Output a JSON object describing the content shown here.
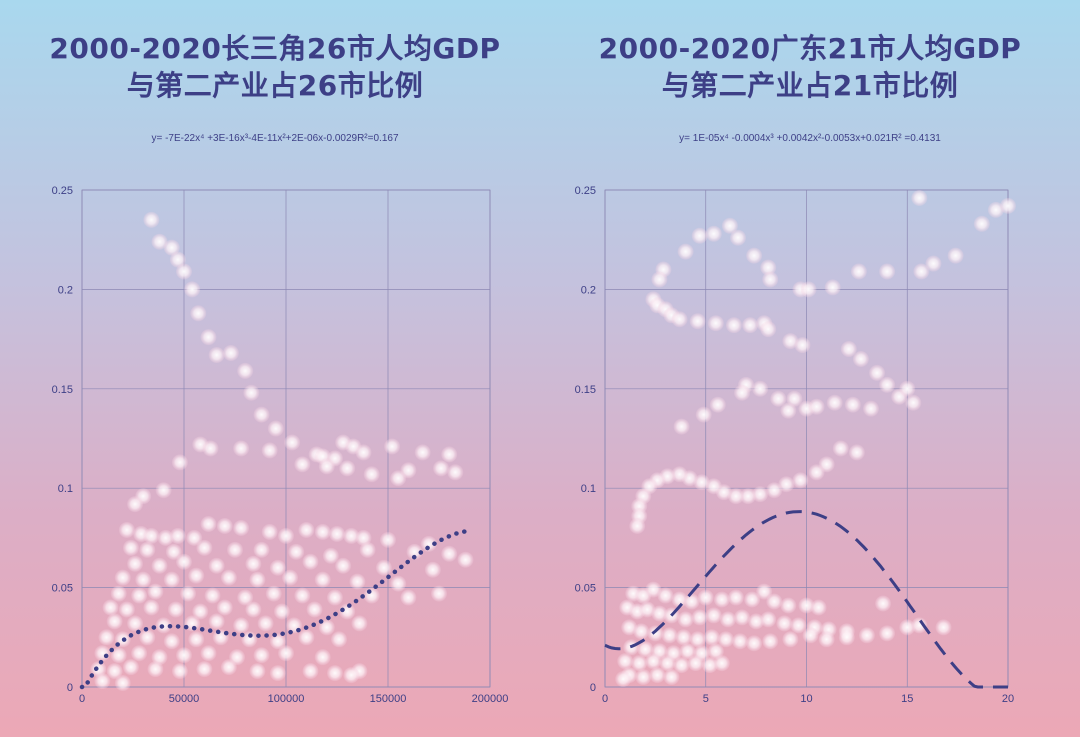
{
  "colors": {
    "title": "#3d3f86",
    "axis": "#7a78a8",
    "grid": "#8c88b4",
    "trend": "#3d3f86",
    "point": "#ffffff"
  },
  "chart_data": [
    {
      "type": "scatter",
      "title_line1": "2000-2020长三角26市人均GDP",
      "title_line2": "与第二产业占26市比例",
      "equation": "y= -7E-22x⁴ +3E-16x³-4E-11x²+2E-06x-0.0029R²=0.167",
      "xlim": [
        0,
        200000
      ],
      "ylim": [
        0,
        0.25
      ],
      "x_ticks": [
        "0",
        "50000",
        "100000",
        "150000",
        "200000"
      ],
      "y_ticks": [
        "0",
        "0.05",
        "0.1",
        "0.15",
        "0.2",
        "0.25"
      ],
      "grid": true,
      "trendline": {
        "style": "dotted",
        "coefficients": [
          -7e-22,
          3e-16,
          -4e-11,
          2e-06,
          -0.0029
        ],
        "x_range": [
          0,
          190000
        ]
      },
      "points": [
        [
          34000,
          0.235
        ],
        [
          38000,
          0.224
        ],
        [
          44000,
          0.221
        ],
        [
          47000,
          0.215
        ],
        [
          50000,
          0.209
        ],
        [
          54000,
          0.2
        ],
        [
          57000,
          0.188
        ],
        [
          62000,
          0.176
        ],
        [
          66000,
          0.167
        ],
        [
          73000,
          0.168
        ],
        [
          80000,
          0.159
        ],
        [
          83000,
          0.148
        ],
        [
          88000,
          0.137
        ],
        [
          95000,
          0.13
        ],
        [
          103000,
          0.123
        ],
        [
          108000,
          0.112
        ],
        [
          115000,
          0.117
        ],
        [
          118000,
          0.116
        ],
        [
          124000,
          0.115
        ],
        [
          128000,
          0.123
        ],
        [
          133000,
          0.121
        ],
        [
          138000,
          0.118
        ],
        [
          152000,
          0.121
        ],
        [
          167000,
          0.118
        ],
        [
          180000,
          0.117
        ],
        [
          120000,
          0.111
        ],
        [
          130000,
          0.11
        ],
        [
          142000,
          0.107
        ],
        [
          160000,
          0.109
        ],
        [
          176000,
          0.11
        ],
        [
          183000,
          0.108
        ],
        [
          155000,
          0.105
        ],
        [
          58000,
          0.122
        ],
        [
          63000,
          0.12
        ],
        [
          78000,
          0.12
        ],
        [
          92000,
          0.119
        ],
        [
          48000,
          0.113
        ],
        [
          40000,
          0.099
        ],
        [
          30000,
          0.096
        ],
        [
          26000,
          0.092
        ],
        [
          22000,
          0.079
        ],
        [
          29000,
          0.077
        ],
        [
          34000,
          0.076
        ],
        [
          41000,
          0.075
        ],
        [
          47000,
          0.076
        ],
        [
          55000,
          0.075
        ],
        [
          62000,
          0.082
        ],
        [
          70000,
          0.081
        ],
        [
          78000,
          0.08
        ],
        [
          92000,
          0.078
        ],
        [
          100000,
          0.076
        ],
        [
          110000,
          0.079
        ],
        [
          118000,
          0.078
        ],
        [
          125000,
          0.077
        ],
        [
          132000,
          0.076
        ],
        [
          138000,
          0.075
        ],
        [
          150000,
          0.074
        ],
        [
          170000,
          0.072
        ],
        [
          188000,
          0.064
        ],
        [
          180000,
          0.067
        ],
        [
          24000,
          0.07
        ],
        [
          32000,
          0.069
        ],
        [
          45000,
          0.068
        ],
        [
          60000,
          0.07
        ],
        [
          75000,
          0.069
        ],
        [
          88000,
          0.069
        ],
        [
          105000,
          0.068
        ],
        [
          122000,
          0.066
        ],
        [
          140000,
          0.069
        ],
        [
          163000,
          0.068
        ],
        [
          26000,
          0.062
        ],
        [
          38000,
          0.061
        ],
        [
          50000,
          0.063
        ],
        [
          66000,
          0.061
        ],
        [
          84000,
          0.062
        ],
        [
          96000,
          0.06
        ],
        [
          112000,
          0.063
        ],
        [
          128000,
          0.061
        ],
        [
          148000,
          0.06
        ],
        [
          172000,
          0.059
        ],
        [
          20000,
          0.055
        ],
        [
          30000,
          0.054
        ],
        [
          44000,
          0.054
        ],
        [
          56000,
          0.056
        ],
        [
          72000,
          0.055
        ],
        [
          86000,
          0.054
        ],
        [
          102000,
          0.055
        ],
        [
          118000,
          0.054
        ],
        [
          135000,
          0.053
        ],
        [
          155000,
          0.052
        ],
        [
          18000,
          0.047
        ],
        [
          28000,
          0.046
        ],
        [
          36000,
          0.048
        ],
        [
          52000,
          0.047
        ],
        [
          64000,
          0.046
        ],
        [
          80000,
          0.045
        ],
        [
          94000,
          0.047
        ],
        [
          108000,
          0.046
        ],
        [
          124000,
          0.045
        ],
        [
          142000,
          0.046
        ],
        [
          160000,
          0.045
        ],
        [
          175000,
          0.047
        ],
        [
          14000,
          0.04
        ],
        [
          22000,
          0.039
        ],
        [
          34000,
          0.04
        ],
        [
          46000,
          0.039
        ],
        [
          58000,
          0.038
        ],
        [
          70000,
          0.04
        ],
        [
          84000,
          0.039
        ],
        [
          98000,
          0.038
        ],
        [
          114000,
          0.039
        ],
        [
          130000,
          0.038
        ],
        [
          16000,
          0.033
        ],
        [
          26000,
          0.032
        ],
        [
          40000,
          0.031
        ],
        [
          54000,
          0.032
        ],
        [
          66000,
          0.033
        ],
        [
          78000,
          0.031
        ],
        [
          90000,
          0.032
        ],
        [
          104000,
          0.031
        ],
        [
          120000,
          0.03
        ],
        [
          136000,
          0.032
        ],
        [
          12000,
          0.025
        ],
        [
          20000,
          0.024
        ],
        [
          32000,
          0.025
        ],
        [
          44000,
          0.023
        ],
        [
          56000,
          0.024
        ],
        [
          68000,
          0.025
        ],
        [
          82000,
          0.024
        ],
        [
          96000,
          0.023
        ],
        [
          110000,
          0.025
        ],
        [
          126000,
          0.024
        ],
        [
          10000,
          0.017
        ],
        [
          18000,
          0.016
        ],
        [
          28000,
          0.017
        ],
        [
          38000,
          0.015
        ],
        [
          50000,
          0.016
        ],
        [
          62000,
          0.017
        ],
        [
          76000,
          0.015
        ],
        [
          88000,
          0.016
        ],
        [
          100000,
          0.017
        ],
        [
          118000,
          0.015
        ],
        [
          8000,
          0.009
        ],
        [
          16000,
          0.008
        ],
        [
          24000,
          0.01
        ],
        [
          36000,
          0.009
        ],
        [
          48000,
          0.008
        ],
        [
          60000,
          0.009
        ],
        [
          72000,
          0.01
        ],
        [
          86000,
          0.008
        ],
        [
          96000,
          0.007
        ],
        [
          112000,
          0.008
        ],
        [
          124000,
          0.007
        ],
        [
          136000,
          0.008
        ],
        [
          132000,
          0.006
        ],
        [
          10000,
          0.003
        ],
        [
          20000,
          0.002
        ]
      ]
    },
    {
      "type": "scatter",
      "title_line1": "2000-2020广东21市人均GDP",
      "title_line2": "与第二产业占21市比例",
      "equation": "y= 1E-05x⁴ -0.0004x³ +0.0042x²-0.0053x+0.021R² =0.4131",
      "xlim": [
        0,
        20
      ],
      "ylim": [
        0,
        0.25
      ],
      "x_ticks": [
        "0",
        "5",
        "10",
        "15",
        "20"
      ],
      "y_ticks": [
        "0",
        "0.05",
        "0.1",
        "0.15",
        "0.2",
        "0.25"
      ],
      "grid": true,
      "trendline": {
        "style": "dashed",
        "coefficients": [
          1e-05,
          -0.0004,
          0.0042,
          -0.0053,
          0.021
        ],
        "x_range": [
          0,
          20
        ]
      },
      "points": [
        [
          15.6,
          0.246
        ],
        [
          19.4,
          0.24
        ],
        [
          20.0,
          0.242
        ],
        [
          18.7,
          0.233
        ],
        [
          4.7,
          0.227
        ],
        [
          5.4,
          0.228
        ],
        [
          6.2,
          0.232
        ],
        [
          6.6,
          0.226
        ],
        [
          4.0,
          0.219
        ],
        [
          7.4,
          0.217
        ],
        [
          8.1,
          0.211
        ],
        [
          8.2,
          0.205
        ],
        [
          2.9,
          0.21
        ],
        [
          2.7,
          0.205
        ],
        [
          9.7,
          0.2
        ],
        [
          10.1,
          0.2
        ],
        [
          11.3,
          0.201
        ],
        [
          12.6,
          0.209
        ],
        [
          14.0,
          0.209
        ],
        [
          15.7,
          0.209
        ],
        [
          16.3,
          0.213
        ],
        [
          17.4,
          0.217
        ],
        [
          2.4,
          0.195
        ],
        [
          2.6,
          0.192
        ],
        [
          3.0,
          0.19
        ],
        [
          3.3,
          0.187
        ],
        [
          3.7,
          0.185
        ],
        [
          4.6,
          0.184
        ],
        [
          5.5,
          0.183
        ],
        [
          6.4,
          0.182
        ],
        [
          7.2,
          0.182
        ],
        [
          7.9,
          0.183
        ],
        [
          8.1,
          0.18
        ],
        [
          9.2,
          0.174
        ],
        [
          9.8,
          0.172
        ],
        [
          12.1,
          0.17
        ],
        [
          12.7,
          0.165
        ],
        [
          13.5,
          0.158
        ],
        [
          14.0,
          0.152
        ],
        [
          14.6,
          0.146
        ],
        [
          7.0,
          0.152
        ],
        [
          6.8,
          0.148
        ],
        [
          7.7,
          0.15
        ],
        [
          8.6,
          0.145
        ],
        [
          9.4,
          0.145
        ],
        [
          9.1,
          0.139
        ],
        [
          10.0,
          0.14
        ],
        [
          10.5,
          0.141
        ],
        [
          11.4,
          0.143
        ],
        [
          12.3,
          0.142
        ],
        [
          13.2,
          0.14
        ],
        [
          15.0,
          0.15
        ],
        [
          15.3,
          0.143
        ],
        [
          5.6,
          0.142
        ],
        [
          4.9,
          0.137
        ],
        [
          3.8,
          0.131
        ],
        [
          11.7,
          0.12
        ],
        [
          12.5,
          0.118
        ],
        [
          11.0,
          0.112
        ],
        [
          10.5,
          0.108
        ],
        [
          9.7,
          0.104
        ],
        [
          9.0,
          0.102
        ],
        [
          8.4,
          0.099
        ],
        [
          7.7,
          0.097
        ],
        [
          7.1,
          0.096
        ],
        [
          6.5,
          0.096
        ],
        [
          5.9,
          0.098
        ],
        [
          5.4,
          0.101
        ],
        [
          4.8,
          0.103
        ],
        [
          4.2,
          0.105
        ],
        [
          3.7,
          0.107
        ],
        [
          3.1,
          0.106
        ],
        [
          2.6,
          0.104
        ],
        [
          2.2,
          0.101
        ],
        [
          1.9,
          0.096
        ],
        [
          1.7,
          0.091
        ],
        [
          1.7,
          0.086
        ],
        [
          1.6,
          0.081
        ],
        [
          1.4,
          0.047
        ],
        [
          1.9,
          0.046
        ],
        [
          2.4,
          0.049
        ],
        [
          3.0,
          0.046
        ],
        [
          3.7,
          0.044
        ],
        [
          4.3,
          0.043
        ],
        [
          5.0,
          0.045
        ],
        [
          5.8,
          0.044
        ],
        [
          6.5,
          0.045
        ],
        [
          7.3,
          0.044
        ],
        [
          7.9,
          0.048
        ],
        [
          8.4,
          0.043
        ],
        [
          9.1,
          0.041
        ],
        [
          10.0,
          0.041
        ],
        [
          10.6,
          0.04
        ],
        [
          13.8,
          0.042
        ],
        [
          1.1,
          0.04
        ],
        [
          1.6,
          0.038
        ],
        [
          2.1,
          0.039
        ],
        [
          2.7,
          0.037
        ],
        [
          3.3,
          0.036
        ],
        [
          4.0,
          0.034
        ],
        [
          4.7,
          0.035
        ],
        [
          5.4,
          0.036
        ],
        [
          6.1,
          0.034
        ],
        [
          6.8,
          0.035
        ],
        [
          7.5,
          0.033
        ],
        [
          8.1,
          0.034
        ],
        [
          8.9,
          0.032
        ],
        [
          9.6,
          0.031
        ],
        [
          10.4,
          0.03
        ],
        [
          11.1,
          0.029
        ],
        [
          12.0,
          0.028
        ],
        [
          13.0,
          0.026
        ],
        [
          14.0,
          0.027
        ],
        [
          15.0,
          0.03
        ],
        [
          15.6,
          0.031
        ],
        [
          16.8,
          0.03
        ],
        [
          1.2,
          0.03
        ],
        [
          1.8,
          0.028
        ],
        [
          2.5,
          0.027
        ],
        [
          3.2,
          0.026
        ],
        [
          3.9,
          0.025
        ],
        [
          4.6,
          0.024
        ],
        [
          5.3,
          0.025
        ],
        [
          6.0,
          0.024
        ],
        [
          6.7,
          0.023
        ],
        [
          7.4,
          0.022
        ],
        [
          8.2,
          0.023
        ],
        [
          9.2,
          0.024
        ],
        [
          10.2,
          0.026
        ],
        [
          11.0,
          0.024
        ],
        [
          12.0,
          0.025
        ],
        [
          1.3,
          0.02
        ],
        [
          2.0,
          0.019
        ],
        [
          2.7,
          0.018
        ],
        [
          3.4,
          0.017
        ],
        [
          4.1,
          0.018
        ],
        [
          4.8,
          0.017
        ],
        [
          5.5,
          0.018
        ],
        [
          1.0,
          0.013
        ],
        [
          1.7,
          0.012
        ],
        [
          2.4,
          0.013
        ],
        [
          3.1,
          0.012
        ],
        [
          3.8,
          0.011
        ],
        [
          4.5,
          0.012
        ],
        [
          5.2,
          0.011
        ],
        [
          5.8,
          0.012
        ],
        [
          1.2,
          0.006
        ],
        [
          1.9,
          0.005
        ],
        [
          2.6,
          0.006
        ],
        [
          3.3,
          0.005
        ],
        [
          0.9,
          0.004
        ]
      ]
    }
  ]
}
